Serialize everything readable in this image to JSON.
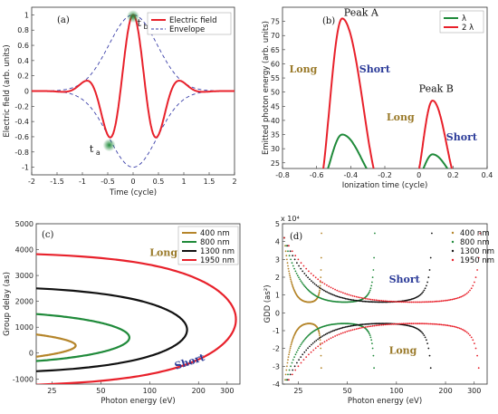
{
  "chart_data": [
    {
      "panel": "(a)",
      "type": "line",
      "xlabel": "Time (cycle)",
      "ylabel": "Electric field (arb. units)",
      "xlim": [
        -2,
        2
      ],
      "ylim": [
        -1.1,
        1.1
      ],
      "xticks": [
        "-2",
        "-1.5",
        "-1",
        "-0.5",
        "0",
        "0.5",
        "1",
        "1.5",
        "2"
      ],
      "yticks": [
        "-1",
        "-0.8",
        "-0.6",
        "-0.4",
        "-0.2",
        "0",
        "0.2",
        "0.4",
        "0.6",
        "0.8",
        "1"
      ],
      "legend": [
        "Electric field",
        "Envelope"
      ],
      "legend_position": "top-right",
      "annotations": [
        "t_a",
        "t_b"
      ],
      "series": [
        {
          "name": "Electric field",
          "color": "#e8212b",
          "function": "exp(-2.2*t^2)*cos(2*pi*t)"
        },
        {
          "name": "Envelope",
          "color": "#3a3fa8",
          "style": "dashed",
          "function": "±exp(-2.2*t^2)"
        }
      ]
    },
    {
      "panel": "(b)",
      "type": "line",
      "xlabel": "Ionization time (cycle)",
      "ylabel": "Emitted photon energy (arb. units)",
      "xlim": [
        -0.8,
        0.4
      ],
      "ylim": [
        23,
        80
      ],
      "xticks": [
        "-0.8",
        "-0.6",
        "-0.4",
        "-0.2",
        "0",
        "0.2",
        "0.4"
      ],
      "yticks": [
        "25",
        "30",
        "35",
        "40",
        "45",
        "50",
        "55",
        "60",
        "65",
        "70",
        "75"
      ],
      "legend": [
        "λ",
        "2 λ"
      ],
      "legend_position": "top-right",
      "labels": {
        "peak_a": "Peak A",
        "peak_b": "Peak B",
        "long1": "Long",
        "short1": "Short",
        "long2": "Long",
        "short2": "Short"
      },
      "series": [
        {
          "name": "λ",
          "color": "#1f8a3a",
          "peaks": [
            {
              "x": -0.45,
              "y": 35
            },
            {
              "x": 0.08,
              "y": 28
            }
          ]
        },
        {
          "name": "2 λ",
          "color": "#e8212b",
          "peaks": [
            {
              "x": -0.45,
              "y": 76
            },
            {
              "x": 0.08,
              "y": 47
            }
          ]
        }
      ]
    },
    {
      "panel": "(c)",
      "type": "line",
      "xlabel": "Photon energy (eV)",
      "ylabel": "Group delay (as)",
      "xlim": [
        20,
        360
      ],
      "ylim": [
        -1200,
        5000
      ],
      "xticks": [
        "25",
        "50",
        "100",
        "200",
        "300"
      ],
      "yticks": [
        "-1000",
        "0",
        "1000",
        "2000",
        "3000",
        "4000",
        "5000"
      ],
      "legend": [
        "400 nm",
        "800 nm",
        "1300 nm",
        "1950 nm"
      ],
      "legend_position": "top-right",
      "labels": {
        "long": "Long",
        "short": "Short"
      },
      "series": [
        {
          "name": "400 nm",
          "color": "#b5852a",
          "cutoff_eV": 35,
          "center_as": 290,
          "half_width_as": 390
        },
        {
          "name": "800 nm",
          "color": "#1f8a3a",
          "cutoff_eV": 75,
          "center_as": 600,
          "half_width_as": 800
        },
        {
          "name": "1300 nm",
          "color": "#111111",
          "cutoff_eV": 170,
          "center_as": 900,
          "half_width_as": 1400
        },
        {
          "name": "1950 nm",
          "color": "#e8212b",
          "cutoff_eV": 340,
          "center_as": 1300,
          "half_width_as": 2200
        }
      ]
    },
    {
      "panel": "(d)",
      "type": "scatter",
      "xlabel": "Photon energy (eV)",
      "ylabel": "GDD (as²)",
      "y_multiplier": "x 10⁴",
      "xlim": [
        20,
        360
      ],
      "ylim": [
        -4,
        5
      ],
      "xticks": [
        "25",
        "50",
        "100",
        "200",
        "300"
      ],
      "yticks": [
        "-4",
        "-3",
        "-2",
        "-1",
        "0",
        "1",
        "2",
        "3",
        "4",
        "5"
      ],
      "legend": [
        "400 nm",
        "800 nm",
        "1300 nm",
        "1950 nm"
      ],
      "legend_position": "top-right",
      "labels": {
        "long": "Long",
        "short": "Short"
      },
      "series": [
        {
          "name": "400 nm",
          "color": "#b5852a",
          "cutoff_eV": 35
        },
        {
          "name": "800 nm",
          "color": "#1f8a3a",
          "cutoff_eV": 75
        },
        {
          "name": "1300 nm",
          "color": "#111111",
          "cutoff_eV": 170
        },
        {
          "name": "1950 nm",
          "color": "#e8212b",
          "cutoff_eV": 340
        }
      ]
    }
  ]
}
